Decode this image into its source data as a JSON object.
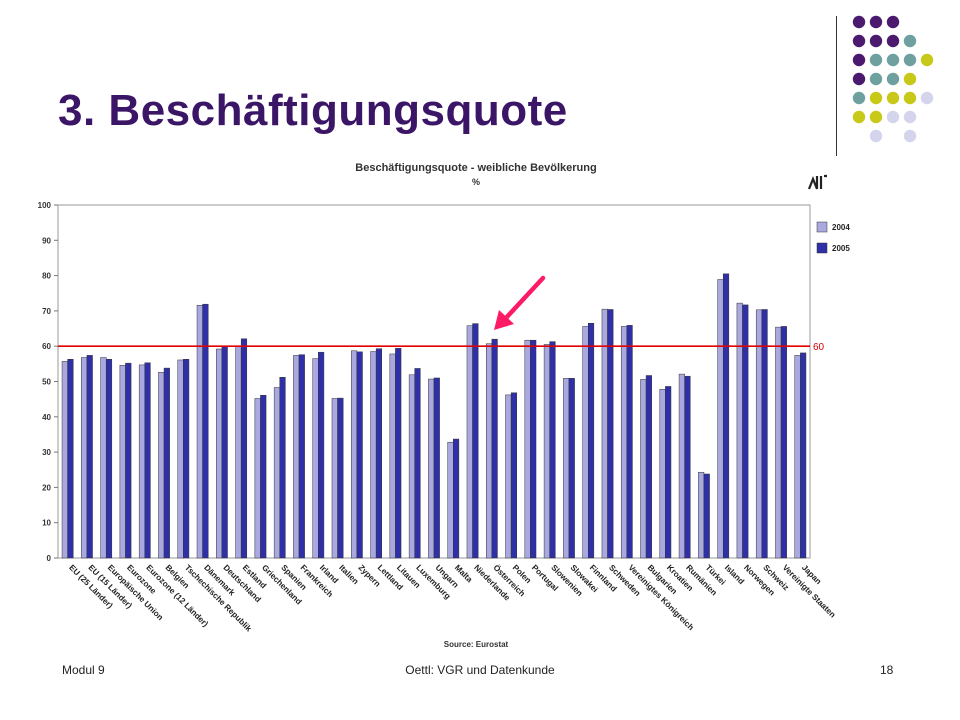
{
  "slide": {
    "title": "3. Beschäftigungsquote",
    "footer_left": "Modul 9",
    "footer_center": "Oettl: VGR und Datenkunde",
    "footer_right": "18"
  },
  "colors": {
    "title": "#3b1566",
    "bar_2004": "#a9a9e0",
    "bar_2005": "#2f30a8",
    "reference_line": "#e00000",
    "arrow": "#ff1a66",
    "deco_purple": "#4b1a6e",
    "deco_teal": "#6fa0a0",
    "deco_yellow": "#c8c818",
    "deco_lavender": "#d4d4ec"
  },
  "chart_data": {
    "type": "bar",
    "title": "Beschäftigungsquote - weibliche Bevölkerung",
    "subtitle": "%",
    "source": "Source: Eurostat",
    "ylim": [
      0,
      100
    ],
    "yticks": [
      0,
      10,
      20,
      30,
      40,
      50,
      60,
      70,
      80,
      90,
      100
    ],
    "grid": false,
    "legend_position": "right",
    "reference_line": {
      "value": 60,
      "label": "60"
    },
    "categories": [
      "EU (25 Länder)",
      "EU (15 Länder)",
      "Europäische Union",
      "Eurozone",
      "Eurozone (12 Länder)",
      "Belgien",
      "Tschechische Republik",
      "Dänemark",
      "Deutschland",
      "Estland",
      "Griechenland",
      "Spanien",
      "Frankreich",
      "Irland",
      "Italien",
      "Zypern",
      "Lettland",
      "Litauen",
      "Luxemburg",
      "Ungarn",
      "Malta",
      "Niederlande",
      "Österreich",
      "Polen",
      "Portugal",
      "Slowenien",
      "Slowakei",
      "Finnland",
      "Schweden",
      "Vereinigtes Königreich",
      "Bulgarien",
      "Kroatien",
      "Rumänien",
      "Türkei",
      "Island",
      "Norwegen",
      "Schweiz",
      "Vereinigte Staaten",
      "Japan"
    ],
    "series": [
      {
        "name": "2004",
        "values": [
          55.7,
          56.8,
          56.8,
          54.6,
          54.7,
          52.6,
          56.1,
          71.6,
          59.2,
          60.0,
          45.2,
          48.3,
          57.4,
          56.5,
          45.2,
          58.7,
          58.5,
          57.8,
          51.9,
          50.7,
          32.8,
          65.8,
          60.7,
          46.2,
          61.7,
          60.5,
          50.9,
          65.6,
          70.5,
          65.6,
          50.6,
          47.8,
          52.1,
          24.3,
          78.9,
          72.2,
          70.3,
          65.4,
          57.4
        ]
      },
      {
        "name": "2005",
        "values": [
          56.3,
          57.4,
          56.3,
          55.2,
          55.3,
          53.8,
          56.3,
          71.9,
          60.0,
          62.1,
          46.1,
          51.2,
          57.6,
          58.3,
          45.3,
          58.4,
          59.3,
          59.4,
          53.7,
          51.0,
          33.7,
          66.4,
          62.0,
          46.8,
          61.7,
          61.3,
          50.9,
          66.5,
          70.4,
          65.9,
          51.7,
          48.6,
          51.5,
          23.8,
          80.5,
          71.7,
          70.4,
          65.6,
          58.1
        ]
      }
    ]
  }
}
